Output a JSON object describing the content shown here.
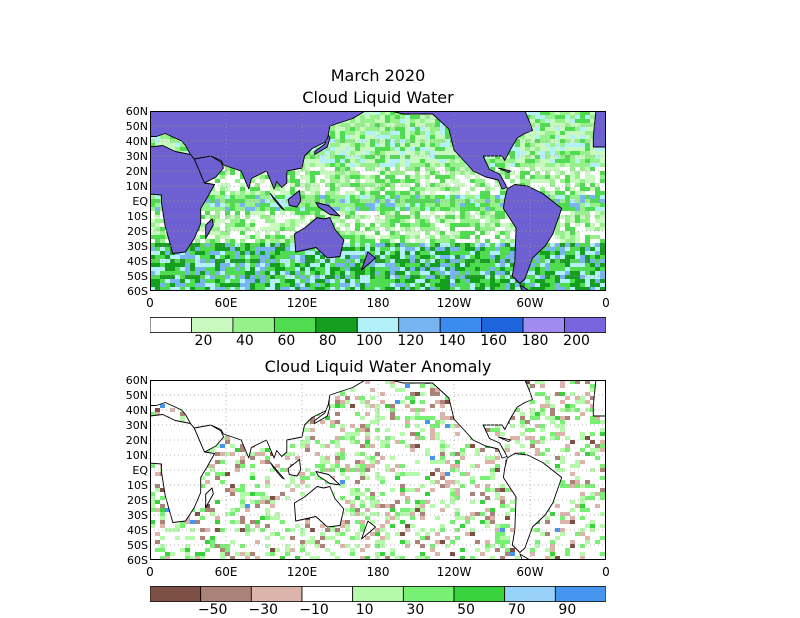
{
  "figure": {
    "title": "March 2020",
    "panel1_title": "Cloud Liquid Water",
    "panel2_title": "Cloud Liquid Water Anomaly",
    "lat_labels": [
      "60N",
      "50N",
      "40N",
      "30N",
      "20N",
      "10N",
      "EQ",
      "10S",
      "20S",
      "30S",
      "40S",
      "50S",
      "60S"
    ],
    "lon_labels": [
      "0",
      "60E",
      "120E",
      "180",
      "120W",
      "60W",
      "0"
    ]
  },
  "colorbar1": {
    "colors": [
      "#ffffff",
      "#c8fac0",
      "#96f08c",
      "#50dc50",
      "#14a01e",
      "#b4f0fa",
      "#78b4f0",
      "#3c8cf0",
      "#1e64dc",
      "#a08cf0",
      "#7864dc"
    ],
    "labels": [
      "20",
      "40",
      "60",
      "80",
      "100",
      "120",
      "140",
      "160",
      "180",
      "200"
    ]
  },
  "colorbar2": {
    "colors": [
      "#7d5046",
      "#aa8278",
      "#dcb4aa",
      "#ffffff",
      "#b4faaa",
      "#78f073",
      "#37d23c",
      "#96d2fa",
      "#4696f0"
    ],
    "labels": [
      "−50",
      "−30",
      "−10",
      "10",
      "30",
      "50",
      "70",
      "90"
    ]
  },
  "land_colors": {
    "panel1": "#6e5fd2",
    "panel2": "#ffffff"
  }
}
